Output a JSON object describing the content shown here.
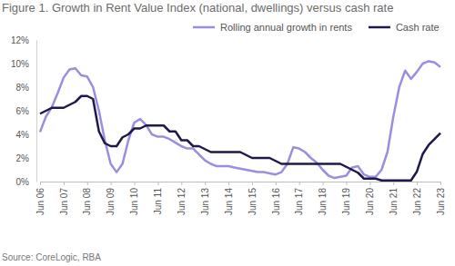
{
  "chart_data": {
    "type": "line",
    "title": "Figure 1. Growth in Rent Value Index (national, dwellings) versus cash rate",
    "source": "Source: CoreLogic, RBA",
    "categories": [
      "Jun 06",
      null,
      null,
      null,
      "Jun 07",
      null,
      null,
      null,
      "Jun 08",
      null,
      null,
      null,
      "Jun 09",
      null,
      null,
      null,
      "Jun 10",
      null,
      null,
      null,
      "Jun 11",
      null,
      null,
      null,
      "Jun 12",
      null,
      null,
      null,
      "Jun 13",
      null,
      null,
      null,
      "Jun 14",
      null,
      null,
      null,
      "Jun 15",
      null,
      null,
      null,
      "Jun 16",
      null,
      null,
      null,
      "Jun 17",
      null,
      null,
      null,
      "Jun 18",
      null,
      null,
      null,
      "Jun 19",
      null,
      null,
      null,
      "Jun 20",
      null,
      null,
      null,
      "Jun 21",
      null,
      null,
      null,
      "Jun 22",
      null,
      null,
      null,
      "Jun 23"
    ],
    "series": [
      {
        "name": "Rolling annual growth in rents",
        "color": "#9a8ee0",
        "values": [
          4.2,
          5.5,
          6.3,
          7.5,
          8.8,
          9.5,
          9.6,
          9.0,
          8.9,
          8.0,
          6.0,
          3.5,
          1.5,
          0.8,
          1.5,
          3.5,
          5.0,
          5.3,
          4.8,
          4.0,
          3.8,
          3.8,
          3.6,
          3.3,
          3.0,
          2.8,
          2.8,
          2.3,
          1.8,
          1.5,
          1.3,
          1.3,
          1.3,
          1.2,
          1.1,
          1.0,
          0.9,
          0.8,
          0.8,
          0.7,
          0.6,
          0.8,
          1.5,
          2.9,
          2.8,
          2.5,
          2.0,
          1.6,
          1.0,
          0.5,
          0.3,
          0.4,
          0.5,
          1.2,
          1.3,
          0.6,
          0.4,
          0.4,
          1.0,
          2.5,
          5.5,
          8.0,
          9.4,
          8.7,
          9.3,
          10.0,
          10.2,
          10.1,
          9.7
        ]
      },
      {
        "name": "Cash rate",
        "color": "#1c1a4a",
        "values": [
          5.75,
          6.0,
          6.25,
          6.25,
          6.25,
          6.5,
          6.75,
          7.25,
          7.25,
          7.0,
          4.25,
          3.25,
          3.0,
          3.0,
          3.75,
          4.0,
          4.5,
          4.5,
          4.75,
          4.75,
          4.75,
          4.75,
          4.25,
          4.25,
          3.5,
          3.5,
          3.0,
          3.0,
          2.75,
          2.5,
          2.5,
          2.5,
          2.5,
          2.5,
          2.5,
          2.25,
          2.0,
          2.0,
          2.0,
          2.0,
          1.75,
          1.5,
          1.5,
          1.5,
          1.5,
          1.5,
          1.5,
          1.5,
          1.5,
          1.5,
          1.5,
          1.5,
          1.25,
          1.0,
          0.75,
          0.25,
          0.25,
          0.25,
          0.1,
          0.1,
          0.1,
          0.1,
          0.1,
          0.1,
          0.85,
          2.35,
          3.1,
          3.6,
          4.1
        ]
      }
    ],
    "ylim": [
      0,
      12
    ],
    "yticks": [
      {
        "value": 0,
        "label": "0%"
      },
      {
        "value": 2,
        "label": "2%"
      },
      {
        "value": 4,
        "label": "4%"
      },
      {
        "value": 6,
        "label": "6%"
      },
      {
        "value": 8,
        "label": "8%"
      },
      {
        "value": 10,
        "label": "10%"
      },
      {
        "value": 12,
        "label": "12%"
      }
    ],
    "grid": false,
    "legend": "top"
  }
}
